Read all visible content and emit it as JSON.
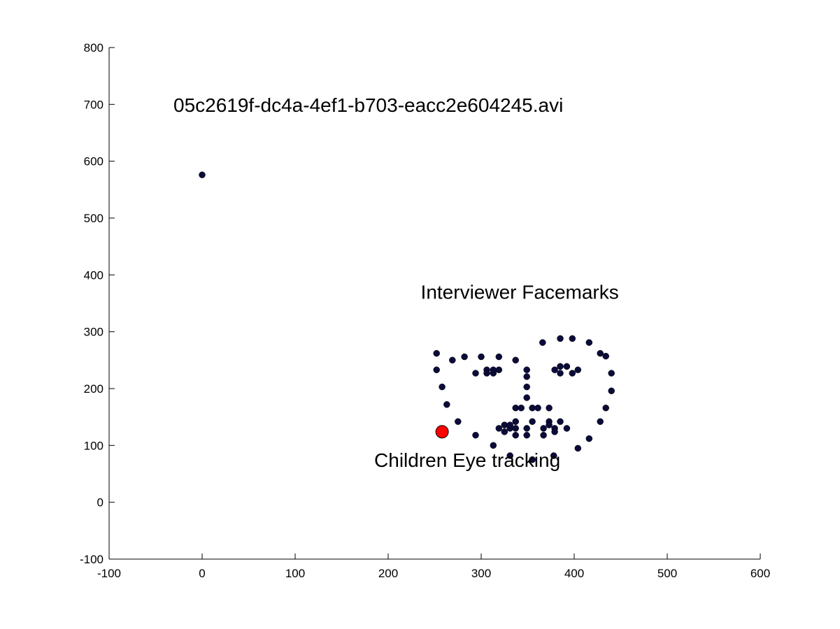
{
  "chart_data": {
    "type": "scatter",
    "title": "05c2619f-dc4a-4ef1-b703-eacc2e604245.avi",
    "xlabel": "",
    "ylabel": "",
    "xlim": [
      -100,
      600
    ],
    "ylim": [
      -100,
      800
    ],
    "xticks": [
      -100,
      0,
      100,
      200,
      300,
      400,
      500,
      600
    ],
    "yticks": [
      -100,
      0,
      100,
      200,
      300,
      400,
      500,
      600,
      700,
      800
    ],
    "xtick_labels": [
      "-100",
      "0",
      "100",
      "200",
      "300",
      "400",
      "500",
      "600"
    ],
    "ytick_labels": [
      "-100",
      "0",
      "100",
      "200",
      "300",
      "400",
      "500",
      "600",
      "700",
      "800"
    ],
    "grid": false,
    "annotations": [
      {
        "text": "Interviewer Facemarks",
        "x": 235,
        "y": 358
      },
      {
        "text": "Children Eye tracking",
        "x": 185,
        "y": 62
      }
    ],
    "series": [
      {
        "color": "#0b0b3a",
        "marker": "circle",
        "points": [
          [
            0,
            576
          ],
          [
            252,
            262
          ],
          [
            252,
            233
          ],
          [
            258,
            203
          ],
          [
            263,
            172
          ],
          [
            275,
            142
          ],
          [
            294,
            118
          ],
          [
            313,
            100
          ],
          [
            331,
            82
          ],
          [
            355,
            75
          ],
          [
            378,
            82
          ],
          [
            404,
            95
          ],
          [
            416,
            112
          ],
          [
            428,
            142
          ],
          [
            434,
            166
          ],
          [
            440,
            196
          ],
          [
            440,
            227
          ],
          [
            434,
            257
          ],
          [
            428,
            262
          ],
          [
            416,
            281
          ],
          [
            398,
            288
          ],
          [
            385,
            288
          ],
          [
            366,
            281
          ],
          [
            269,
            250
          ],
          [
            282,
            256
          ],
          [
            300,
            256
          ],
          [
            319,
            256
          ],
          [
            337,
            250
          ],
          [
            294,
            227
          ],
          [
            306,
            233
          ],
          [
            313,
            227
          ],
          [
            319,
            233
          ],
          [
            306,
            227
          ],
          [
            313,
            233
          ],
          [
            349,
            233
          ],
          [
            349,
            221
          ],
          [
            349,
            203
          ],
          [
            349,
            184
          ],
          [
            337,
            166
          ],
          [
            343,
            166
          ],
          [
            355,
            166
          ],
          [
            361,
            166
          ],
          [
            373,
            166
          ],
          [
            379,
            233
          ],
          [
            385,
            227
          ],
          [
            392,
            239
          ],
          [
            398,
            227
          ],
          [
            404,
            233
          ],
          [
            385,
            239
          ],
          [
            337,
            142
          ],
          [
            355,
            142
          ],
          [
            373,
            142
          ],
          [
            385,
            142
          ],
          [
            319,
            130
          ],
          [
            325,
            136
          ],
          [
            331,
            130
          ],
          [
            337,
            130
          ],
          [
            349,
            130
          ],
          [
            367,
            130
          ],
          [
            379,
            130
          ],
          [
            392,
            130
          ],
          [
            325,
            124
          ],
          [
            337,
            118
          ],
          [
            349,
            118
          ],
          [
            367,
            118
          ],
          [
            379,
            124
          ],
          [
            331,
            136
          ],
          [
            373,
            136
          ]
        ]
      },
      {
        "color": "#ff0000",
        "marker": "large-circle",
        "points": [
          [
            258,
            124
          ]
        ]
      }
    ]
  }
}
